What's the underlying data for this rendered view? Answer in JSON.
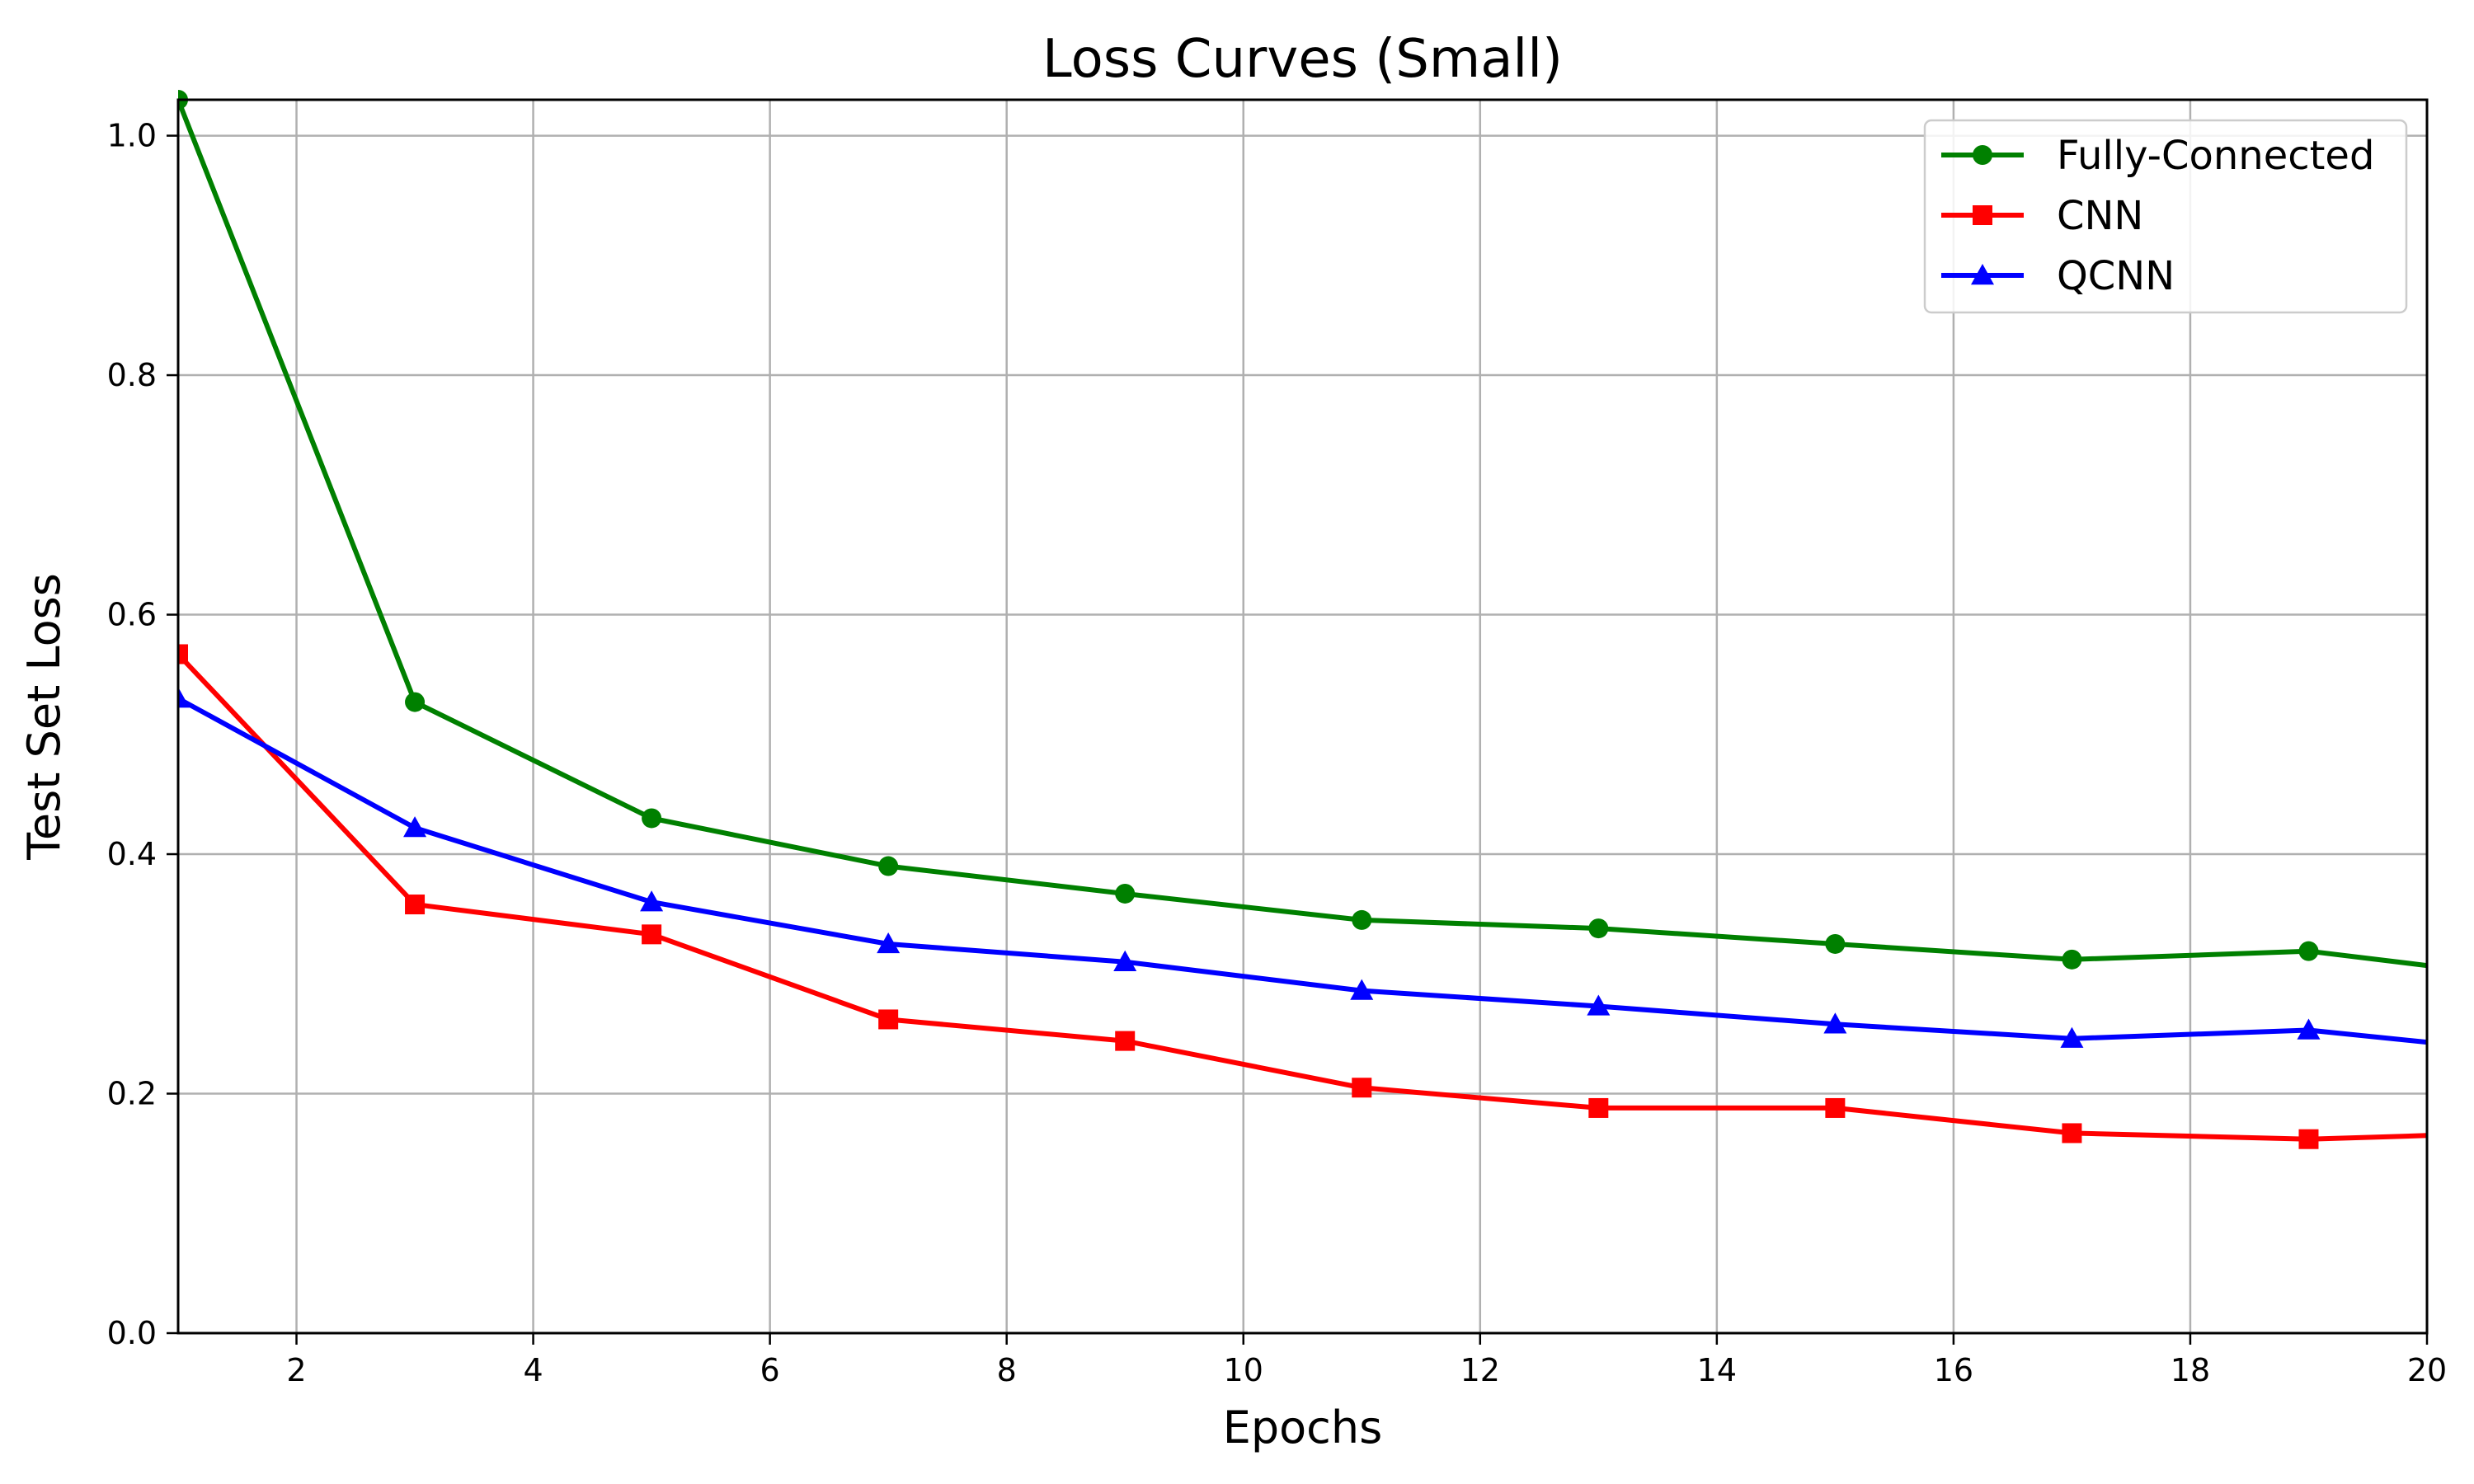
{
  "chart_data": {
    "type": "line",
    "title": "Loss Curves (Small)",
    "xlabel": "Epochs",
    "ylabel": "Test Set Loss",
    "xlim": [
      1,
      20
    ],
    "ylim": [
      0,
      1.03
    ],
    "x_ticks": [
      2,
      4,
      6,
      8,
      10,
      12,
      14,
      16,
      18,
      20
    ],
    "y_ticks": [
      0.0,
      0.2,
      0.4,
      0.6,
      0.8,
      1.0
    ],
    "y_tick_labels": [
      "0.0",
      "0.2",
      "0.4",
      "0.6",
      "0.8",
      "1.0"
    ],
    "grid": true,
    "legend_position": "top-right",
    "series": [
      {
        "name": "Fully-Connected",
        "color": "#008000",
        "marker": "circle",
        "x": [
          1,
          3,
          5,
          7,
          9,
          11,
          13,
          15,
          17,
          19,
          20
        ],
        "y": [
          1.03,
          0.527,
          0.43,
          0.39,
          0.367,
          0.345,
          0.338,
          0.325,
          0.312,
          0.319,
          0.307
        ]
      },
      {
        "name": "CNN",
        "color": "#ff0000",
        "marker": "square",
        "x": [
          1,
          3,
          5,
          7,
          9,
          11,
          13,
          15,
          17,
          19,
          20
        ],
        "y": [
          0.567,
          0.358,
          0.333,
          0.262,
          0.244,
          0.205,
          0.188,
          0.188,
          0.167,
          0.162,
          0.165
        ]
      },
      {
        "name": "QCNN",
        "color": "#0000ff",
        "marker": "triangle",
        "x": [
          1,
          3,
          5,
          7,
          9,
          11,
          13,
          15,
          17,
          19,
          20
        ],
        "y": [
          0.53,
          0.422,
          0.36,
          0.325,
          0.31,
          0.286,
          0.273,
          0.258,
          0.246,
          0.253,
          0.243
        ]
      }
    ]
  }
}
